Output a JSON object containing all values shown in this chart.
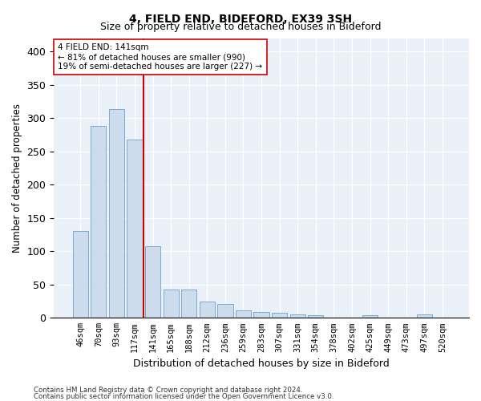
{
  "title": "4, FIELD END, BIDEFORD, EX39 3SH",
  "subtitle": "Size of property relative to detached houses in Bideford",
  "xlabel": "Distribution of detached houses by size in Bideford",
  "ylabel": "Number of detached properties",
  "categories": [
    "46sqm",
    "70sqm",
    "93sqm",
    "117sqm",
    "141sqm",
    "165sqm",
    "188sqm",
    "212sqm",
    "236sqm",
    "259sqm",
    "283sqm",
    "307sqm",
    "331sqm",
    "354sqm",
    "378sqm",
    "402sqm",
    "425sqm",
    "449sqm",
    "473sqm",
    "497sqm",
    "520sqm"
  ],
  "values": [
    130,
    288,
    314,
    268,
    108,
    42,
    42,
    25,
    21,
    11,
    9,
    7,
    5,
    4,
    0,
    0,
    4,
    0,
    0,
    5,
    0
  ],
  "bar_color": "#ccdcec",
  "bar_edge_color": "#7aabcf",
  "marker_index": 4,
  "marker_color": "#cc0000",
  "annotation_line1": "4 FIELD END: 141sqm",
  "annotation_line2": "← 81% of detached houses are smaller (990)",
  "annotation_line3": "19% of semi-detached houses are larger (227) →",
  "ylim": [
    0,
    420
  ],
  "yticks": [
    0,
    50,
    100,
    150,
    200,
    250,
    300,
    350,
    400
  ],
  "footer1": "Contains HM Land Registry data © Crown copyright and database right 2024.",
  "footer2": "Contains public sector information licensed under the Open Government Licence v3.0.",
  "bg_color": "#ffffff",
  "plot_bg_color": "#eaf0f8"
}
